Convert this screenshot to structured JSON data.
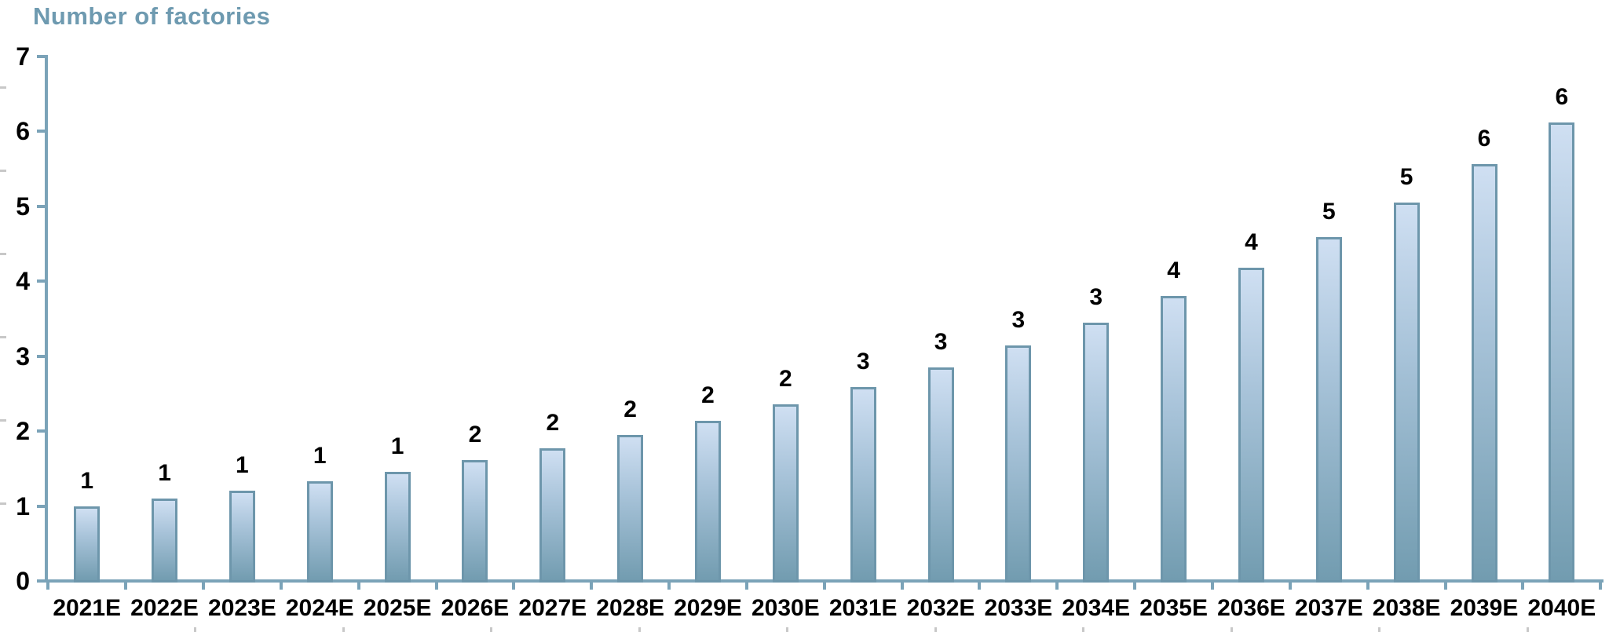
{
  "chart_data": {
    "type": "bar",
    "title": "Number of factories",
    "categories": [
      "2021E",
      "2022E",
      "2023E",
      "2024E",
      "2025E",
      "2026E",
      "2027E",
      "2028E",
      "2029E",
      "2030E",
      "2031E",
      "2032E",
      "2033E",
      "2034E",
      "2035E",
      "2036E",
      "2037E",
      "2038E",
      "2039E",
      "2040E"
    ],
    "values": [
      1.0,
      1.1,
      1.21,
      1.33,
      1.46,
      1.61,
      1.77,
      1.95,
      2.14,
      2.36,
      2.59,
      2.85,
      3.14,
      3.45,
      3.8,
      4.18,
      4.59,
      5.05,
      5.56,
      6.12
    ],
    "bar_labels": [
      "1",
      "1",
      "1",
      "1",
      "1",
      "2",
      "2",
      "2",
      "2",
      "2",
      "3",
      "3",
      "3",
      "3",
      "4",
      "4",
      "5",
      "5",
      "6",
      "6"
    ],
    "xlabel": "",
    "ylabel": "",
    "ylim": [
      0,
      7
    ],
    "yticks": [
      "0",
      "1",
      "2",
      "3",
      "4",
      "5",
      "6",
      "7"
    ],
    "grid": false,
    "legend": "none",
    "colors": {
      "title_text": "#6e9ab0",
      "axis": "#7ba3b8",
      "bar_border": "#6d96ab",
      "bar_fill_top": "#cfdff2",
      "bar_fill_mid": "#a9c4da",
      "bar_fill_bottom": "#729cb0",
      "label_text": "#000000",
      "minor_tick": "#c8c8c8"
    }
  }
}
